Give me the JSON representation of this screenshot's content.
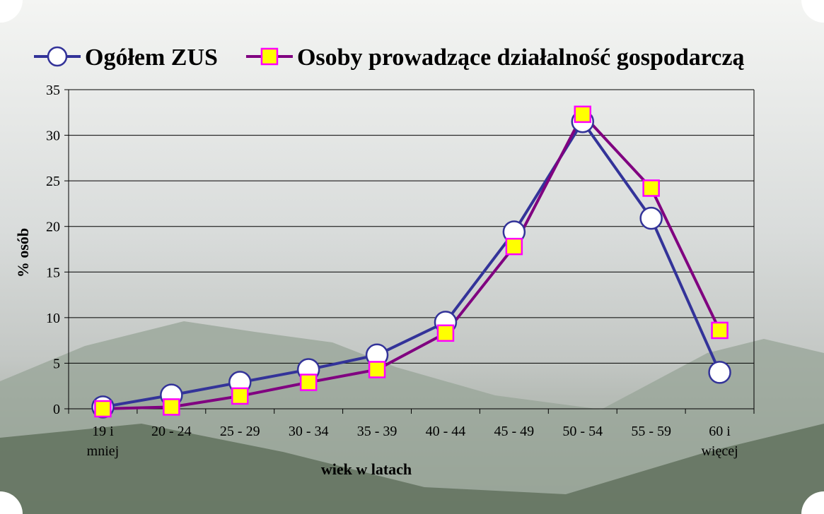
{
  "chart_data": {
    "type": "line",
    "xlabel": "wiek w latach",
    "ylabel": "% osób",
    "categories": [
      "19 i mniej",
      "20 - 24",
      "25 - 29",
      "30 - 34",
      "35 - 39",
      "40 - 44",
      "45 - 49",
      "50 - 54",
      "55 - 59",
      "60 i więcej"
    ],
    "series": [
      {
        "name": "Ogółem ZUS",
        "color": "#333399",
        "marker": "circle",
        "marker_fill": "#ffffff",
        "marker_edge": "#333399",
        "values": [
          0.2,
          1.5,
          2.9,
          4.3,
          5.9,
          9.5,
          19.4,
          31.5,
          20.9,
          4.0
        ]
      },
      {
        "name": "Osoby prowadzące działalność gospodarczą",
        "color": "#800080",
        "marker": "square",
        "marker_fill": "#ffff00",
        "marker_edge": "#ff00ff",
        "values": [
          0.0,
          0.2,
          1.4,
          2.9,
          4.3,
          8.3,
          17.8,
          32.3,
          24.2,
          8.6
        ]
      }
    ],
    "ylim": [
      0,
      35
    ],
    "yticks": [
      0,
      5,
      10,
      15,
      20,
      25,
      30,
      35
    ],
    "grid": true,
    "legend": "top"
  }
}
